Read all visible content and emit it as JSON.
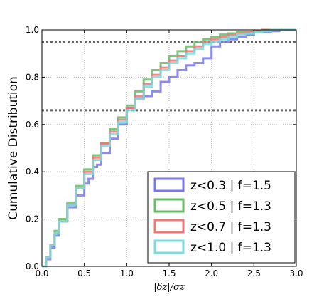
{
  "chart_data": {
    "type": "line",
    "title": "",
    "xlabel": "|δz|/σz",
    "ylabel": "Cumulative Distribution",
    "xlim": [
      0.0,
      3.0
    ],
    "ylim": [
      0.0,
      1.0
    ],
    "x_ticks": [
      "0.0",
      "0.5",
      "1.0",
      "1.5",
      "2.0",
      "2.5",
      "3.0"
    ],
    "y_ticks": [
      "0.0",
      "0.2",
      "0.4",
      "0.6",
      "0.8",
      "1.0"
    ],
    "grid": true,
    "legend_position": "lower-right",
    "reference_lines": [
      0.66,
      0.95
    ],
    "series": [
      {
        "name": "z<0.3 | f=1.5",
        "color": "#7777ee",
        "x": [
          0.0,
          0.05,
          0.1,
          0.15,
          0.2,
          0.3,
          0.4,
          0.5,
          0.55,
          0.6,
          0.65,
          0.7,
          0.8,
          0.9,
          1.0,
          1.1,
          1.2,
          1.3,
          1.4,
          1.5,
          1.6,
          1.7,
          1.8,
          1.9,
          2.0,
          2.1,
          2.2,
          2.3,
          2.4,
          2.5,
          2.6,
          2.7,
          2.8,
          2.9,
          3.0
        ],
        "y": [
          0.0,
          0.03,
          0.08,
          0.13,
          0.19,
          0.25,
          0.3,
          0.35,
          0.37,
          0.42,
          0.43,
          0.48,
          0.54,
          0.6,
          0.67,
          0.71,
          0.72,
          0.74,
          0.78,
          0.8,
          0.83,
          0.85,
          0.86,
          0.88,
          0.93,
          0.95,
          0.96,
          0.97,
          0.98,
          0.99,
          0.99,
          0.995,
          1.0,
          1.0,
          1.0
        ]
      },
      {
        "name": "z<0.5 | f=1.3",
        "color": "#66bb66",
        "x": [
          0.0,
          0.05,
          0.1,
          0.15,
          0.2,
          0.3,
          0.4,
          0.5,
          0.6,
          0.7,
          0.8,
          0.9,
          1.0,
          1.1,
          1.2,
          1.3,
          1.4,
          1.5,
          1.6,
          1.7,
          1.8,
          1.9,
          2.0,
          2.1,
          2.2,
          2.3,
          2.4,
          2.5,
          2.6,
          2.7,
          2.8,
          2.9,
          3.0
        ],
        "y": [
          0.0,
          0.04,
          0.09,
          0.15,
          0.2,
          0.27,
          0.34,
          0.41,
          0.47,
          0.52,
          0.58,
          0.63,
          0.68,
          0.74,
          0.79,
          0.83,
          0.86,
          0.89,
          0.91,
          0.93,
          0.95,
          0.96,
          0.97,
          0.98,
          0.985,
          0.99,
          0.99,
          0.995,
          1.0,
          1.0,
          1.0,
          1.0,
          1.0
        ]
      },
      {
        "name": "z<0.7 | f=1.3",
        "color": "#ee7777",
        "x": [
          0.0,
          0.05,
          0.1,
          0.15,
          0.2,
          0.3,
          0.4,
          0.5,
          0.6,
          0.7,
          0.8,
          0.9,
          1.0,
          1.1,
          1.2,
          1.3,
          1.4,
          1.5,
          1.6,
          1.7,
          1.8,
          1.9,
          2.0,
          2.1,
          2.2,
          2.3,
          2.4,
          2.5,
          2.6,
          2.7,
          2.8,
          2.9,
          3.0
        ],
        "y": [
          0.0,
          0.04,
          0.09,
          0.14,
          0.19,
          0.26,
          0.33,
          0.4,
          0.46,
          0.52,
          0.57,
          0.62,
          0.67,
          0.72,
          0.77,
          0.81,
          0.84,
          0.87,
          0.89,
          0.91,
          0.93,
          0.95,
          0.96,
          0.97,
          0.98,
          0.985,
          0.99,
          0.995,
          1.0,
          1.0,
          1.0,
          1.0,
          1.0
        ]
      },
      {
        "name": "z<1.0 | f=1.3",
        "color": "#77dddd",
        "x": [
          0.0,
          0.05,
          0.1,
          0.15,
          0.2,
          0.3,
          0.4,
          0.5,
          0.6,
          0.7,
          0.8,
          0.9,
          1.0,
          1.1,
          1.2,
          1.3,
          1.4,
          1.5,
          1.6,
          1.7,
          1.8,
          1.9,
          2.0,
          2.1,
          2.2,
          2.3,
          2.4,
          2.5,
          2.6,
          2.7,
          2.8,
          2.9,
          3.0
        ],
        "y": [
          0.0,
          0.04,
          0.09,
          0.14,
          0.19,
          0.26,
          0.33,
          0.39,
          0.45,
          0.51,
          0.56,
          0.61,
          0.66,
          0.71,
          0.76,
          0.8,
          0.83,
          0.86,
          0.88,
          0.9,
          0.92,
          0.94,
          0.95,
          0.96,
          0.97,
          0.98,
          0.985,
          0.99,
          0.995,
          1.0,
          1.0,
          1.0,
          1.0
        ]
      }
    ]
  }
}
